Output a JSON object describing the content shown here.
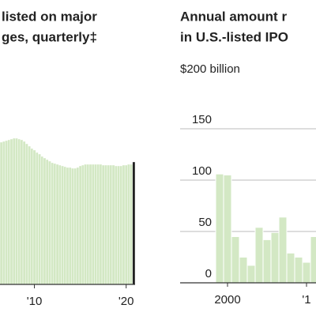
{
  "chart_data": [
    {
      "type": "bar",
      "title_lines": [
        "listed on major",
        "ges, quarterly‡"
      ],
      "categories": [
        null,
        null,
        null,
        null,
        null,
        null,
        null,
        null,
        null,
        null,
        null,
        null,
        null,
        "'10",
        null,
        null,
        null,
        null,
        null,
        null,
        null,
        null,
        null,
        null,
        null,
        null,
        null,
        null,
        null,
        null,
        null,
        null,
        null,
        null,
        null,
        null,
        null,
        null,
        null,
        null,
        null,
        null,
        null,
        null,
        null,
        null,
        null,
        null,
        null,
        "'20",
        null,
        null,
        null
      ],
      "values": [
        180,
        181,
        182,
        183,
        184,
        185,
        185,
        184,
        183,
        181,
        178,
        175,
        172,
        170,
        167,
        165,
        162,
        160,
        158,
        156,
        154,
        153,
        152,
        151,
        150,
        149,
        148,
        148,
        147,
        147,
        148,
        150,
        151,
        152,
        152,
        152,
        152,
        152,
        152,
        152,
        151,
        151,
        151,
        151,
        151,
        150,
        150,
        150,
        151,
        151,
        152,
        152,
        155
      ],
      "color": "#d3e8c4",
      "highlight": {
        "index": 52,
        "color": "#222222"
      },
      "ylim": [
        0,
        200
      ]
    },
    {
      "type": "bar",
      "title_lines": [
        "Annual amount r",
        "in U.S.-listed IPO"
      ],
      "categories": [
        null,
        "2000",
        null,
        null,
        null,
        null,
        null,
        null,
        null,
        null,
        null,
        "'1",
        null
      ],
      "values": [
        106,
        105,
        45,
        25,
        17,
        54,
        42,
        49,
        64,
        29,
        25,
        20,
        45
      ],
      "color": "#d3e8c4",
      "ylim": [
        0,
        200
      ],
      "yticks": [
        0,
        50,
        100,
        150,
        {
          "value": 200,
          "label": "$200 billion"
        }
      ],
      "grid": true
    }
  ]
}
